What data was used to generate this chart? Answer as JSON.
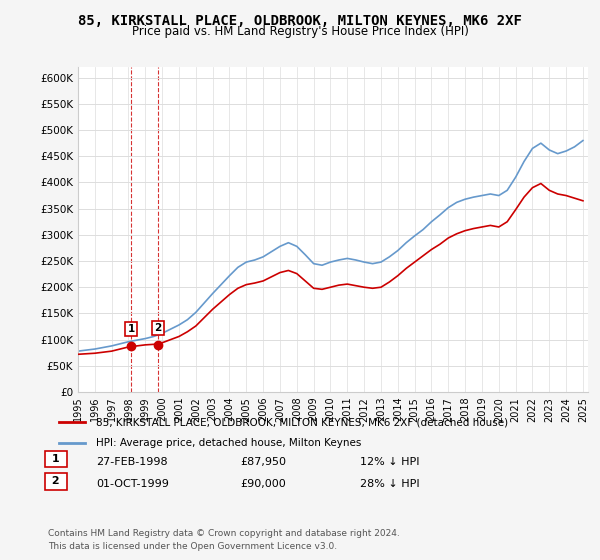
{
  "title": "85, KIRKSTALL PLACE, OLDBROOK, MILTON KEYNES, MK6 2XF",
  "subtitle": "Price paid vs. HM Land Registry's House Price Index (HPI)",
  "hpi_color": "#6699cc",
  "price_color": "#cc0000",
  "marker_color": "#cc0000",
  "marker_box_color": "#cc0000",
  "ylim": [
    0,
    620000
  ],
  "yticks": [
    0,
    50000,
    100000,
    150000,
    200000,
    250000,
    300000,
    350000,
    400000,
    450000,
    500000,
    550000,
    600000
  ],
  "ytick_labels": [
    "£0",
    "£50K",
    "£100K",
    "£150K",
    "£200K",
    "£250K",
    "£300K",
    "£350K",
    "£400K",
    "£450K",
    "£500K",
    "£550K",
    "£600K"
  ],
  "legend_label_red": "85, KIRKSTALL PLACE, OLDBROOK, MILTON KEYNES, MK6 2XF (detached house)",
  "legend_label_blue": "HPI: Average price, detached house, Milton Keynes",
  "sale1_label": "1",
  "sale1_date": "27-FEB-1998",
  "sale1_price": "£87,950",
  "sale1_hpi": "12% ↓ HPI",
  "sale2_label": "2",
  "sale2_date": "01-OCT-1999",
  "sale2_price": "£90,000",
  "sale2_hpi": "28% ↓ HPI",
  "footnote": "Contains HM Land Registry data © Crown copyright and database right 2024.\nThis data is licensed under the Open Government Licence v3.0.",
  "background_color": "#f5f5f5",
  "plot_bg_color": "#ffffff",
  "grid_color": "#dddddd"
}
